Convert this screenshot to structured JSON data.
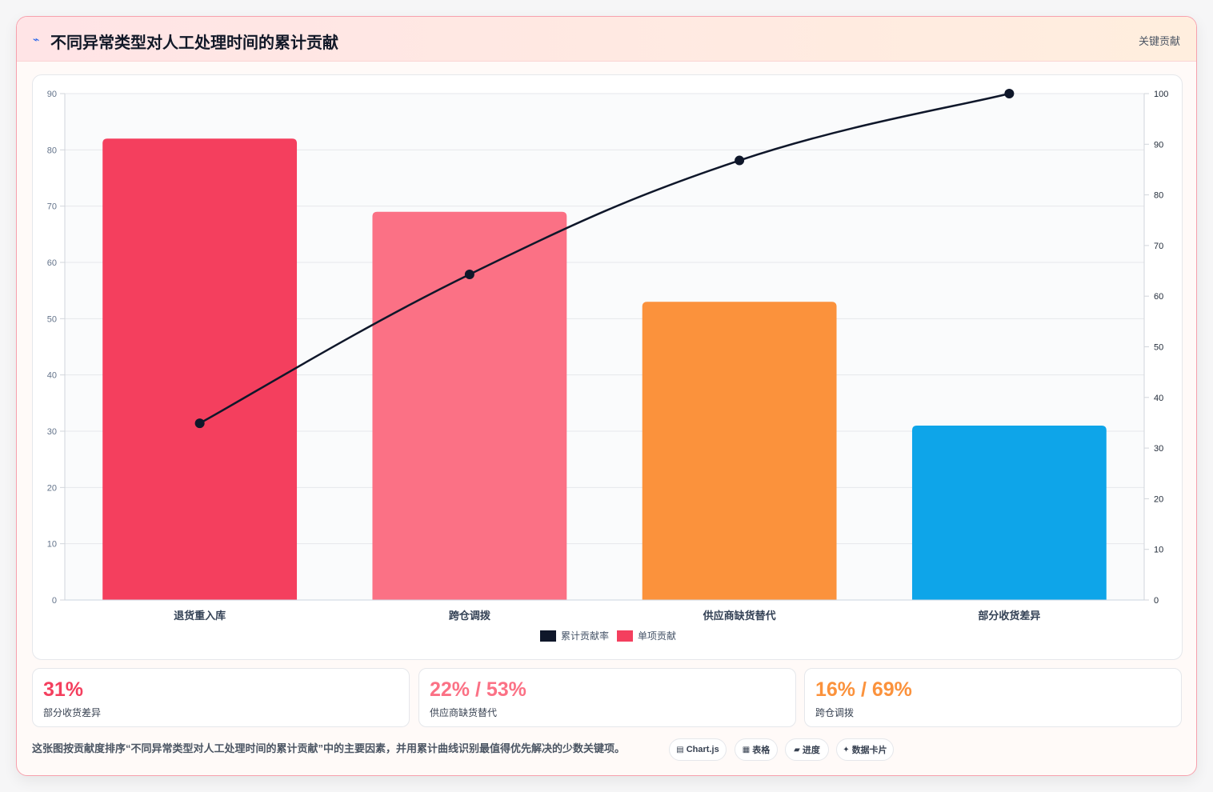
{
  "header": {
    "icon": "sparkle-icon",
    "title": "不同异常类型对人工处理时间的累计贡献",
    "tag": "关键贡献"
  },
  "chart_data": {
    "type": "bar",
    "categories": [
      "退货重入库",
      "跨仓调拨",
      "供应商缺货替代",
      "部分收货差异"
    ],
    "series": [
      {
        "name": "单项贡献",
        "type": "bar",
        "axis": "left",
        "values": [
          82,
          69,
          53,
          31
        ],
        "colors": [
          "#f43f5e",
          "#fb7185",
          "#fb923c",
          "#0ea5e9"
        ]
      },
      {
        "name": "累计贡献率",
        "type": "line",
        "axis": "right",
        "values": [
          34.9,
          64.3,
          86.8,
          100
        ],
        "color": "#0f172a"
      }
    ],
    "ylim": [
      0,
      90
    ],
    "yticks": [
      0,
      10,
      20,
      30,
      40,
      50,
      60,
      70,
      80,
      90
    ],
    "y2lim": [
      0,
      100
    ],
    "y2ticks": [
      0,
      10,
      20,
      30,
      40,
      50,
      60,
      70,
      80,
      90,
      100
    ],
    "legend": [
      {
        "label": "累计贡献率",
        "color": "#0f172a"
      },
      {
        "label": "单项贡献",
        "color": "#f43f5e"
      }
    ],
    "legend_position": "bottom",
    "grid": true
  },
  "stats": [
    {
      "value": "31%",
      "label": "部分收货差异",
      "color": "#f43f5e"
    },
    {
      "value": "22% / 53%",
      "label": "供应商缺货替代",
      "color": "#fb7185"
    },
    {
      "value": "16% / 69%",
      "label": "跨仓调拨",
      "color": "#fb923c"
    }
  ],
  "footnote": "这张图按贡献度排序“不同异常类型对人工处理时间的累计贡献”中的主要因素，并用累计曲线识别最值得优先解决的少数关键项。",
  "chips": [
    {
      "icon": "chart-icon",
      "glyph": "▤",
      "label": "Chart.js"
    },
    {
      "icon": "table-icon",
      "glyph": "▦",
      "label": "表格"
    },
    {
      "icon": "progress-icon",
      "glyph": "▰",
      "label": "进度"
    },
    {
      "icon": "card-icon",
      "glyph": "✦",
      "label": "数据卡片"
    }
  ]
}
